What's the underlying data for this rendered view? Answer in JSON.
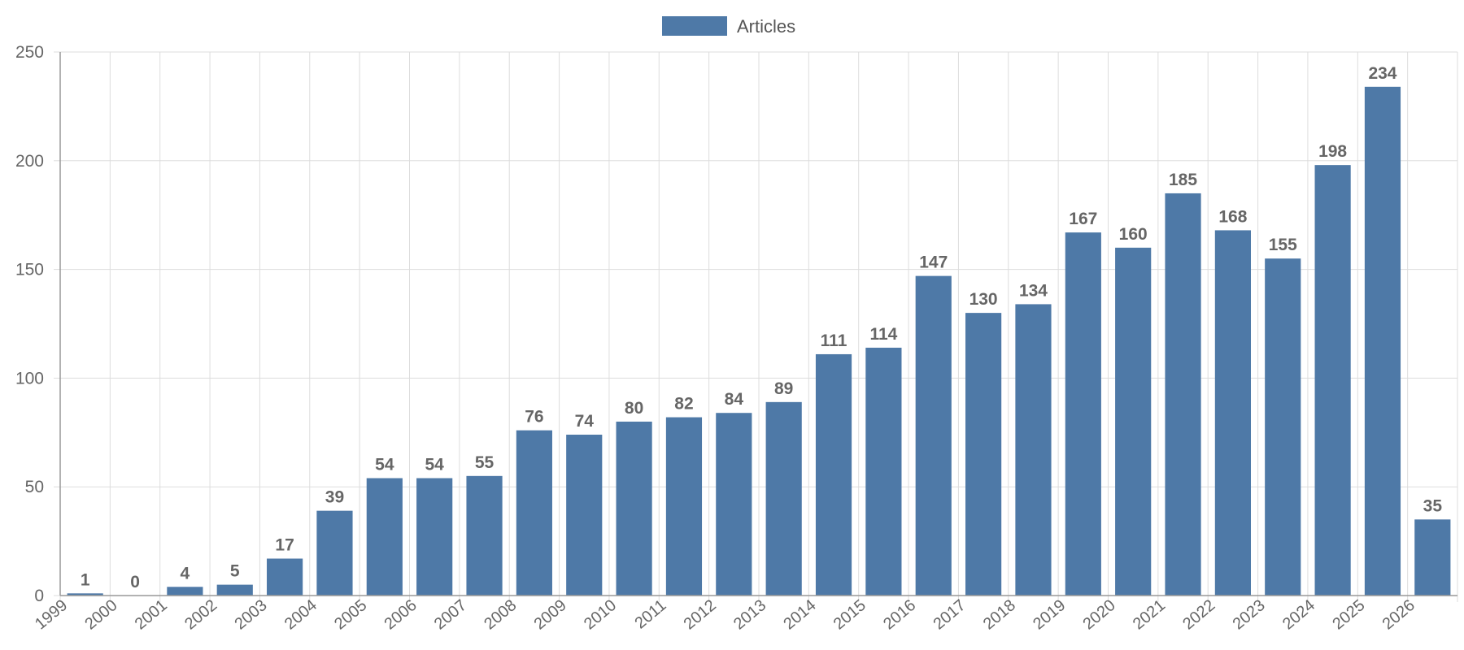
{
  "chart_data": {
    "type": "bar",
    "categories": [
      "1999",
      "2000",
      "2001",
      "2002",
      "2003",
      "2004",
      "2005",
      "2006",
      "2007",
      "2008",
      "2009",
      "2010",
      "2011",
      "2012",
      "2013",
      "2014",
      "2015",
      "2016",
      "2017",
      "2018",
      "2019",
      "2020",
      "2021",
      "2022",
      "2023",
      "2024",
      "2025",
      "2026"
    ],
    "series": [
      {
        "name": "Articles",
        "values": [
          1,
          0,
          4,
          5,
          17,
          39,
          54,
          54,
          55,
          76,
          74,
          80,
          82,
          84,
          89,
          111,
          114,
          147,
          130,
          134,
          167,
          160,
          185,
          168,
          155,
          198,
          234,
          35
        ],
        "color": "#4e79a7"
      }
    ],
    "yticks": [
      0,
      50,
      100,
      150,
      200,
      250
    ],
    "ylim": [
      0,
      250
    ],
    "grid": true,
    "legend_position": "top-center",
    "data_labels": true
  }
}
